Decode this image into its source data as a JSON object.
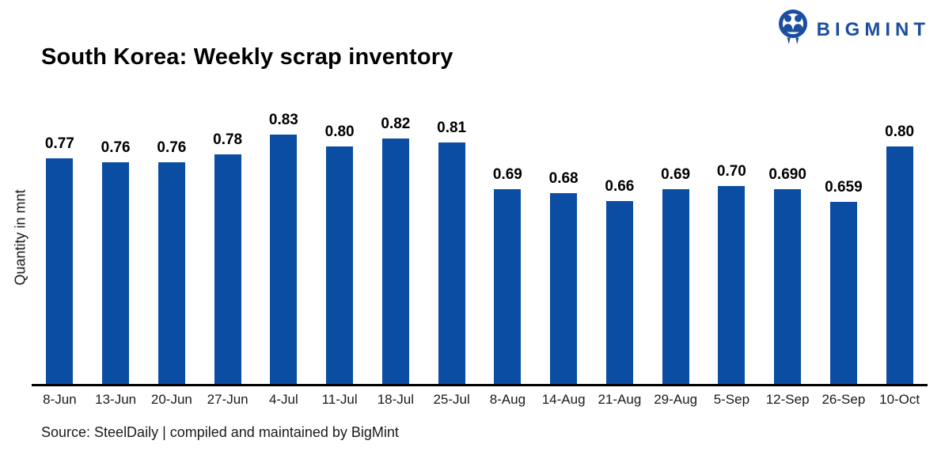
{
  "header": {
    "title": "South Korea: Weekly scrap inventory",
    "logo_text": "BIGMINT",
    "logo_color": "#1B4F9E"
  },
  "chart_data": {
    "type": "bar",
    "title": "South Korea: Weekly scrap inventory",
    "xlabel": "",
    "ylabel": "Quantity in mnt",
    "categories": [
      "8-Jun",
      "13-Jun",
      "20-Jun",
      "27-Jun",
      "4-Jul",
      "11-Jul",
      "18-Jul",
      "25-Jul",
      "8-Aug",
      "14-Aug",
      "21-Aug",
      "29-Aug",
      "5-Sep",
      "12-Sep",
      "26-Sep",
      "10-Oct"
    ],
    "values": [
      0.77,
      0.76,
      0.76,
      0.78,
      0.83,
      0.8,
      0.82,
      0.81,
      0.69,
      0.68,
      0.66,
      0.69,
      0.7,
      0.69,
      0.659,
      0.8
    ],
    "value_labels": [
      "0.77",
      "0.76",
      "0.76",
      "0.78",
      "0.83",
      "0.80",
      "0.82",
      "0.81",
      "0.69",
      "0.68",
      "0.66",
      "0.69",
      "0.70",
      "0.690",
      "0.659",
      "0.80"
    ],
    "bar_color": "#0B4DA2",
    "ylim": [
      0.19,
      0.9
    ],
    "grid": false,
    "legend": "none"
  },
  "footer": {
    "source": "Source: SteelDaily | compiled and maintained by BigMint"
  }
}
